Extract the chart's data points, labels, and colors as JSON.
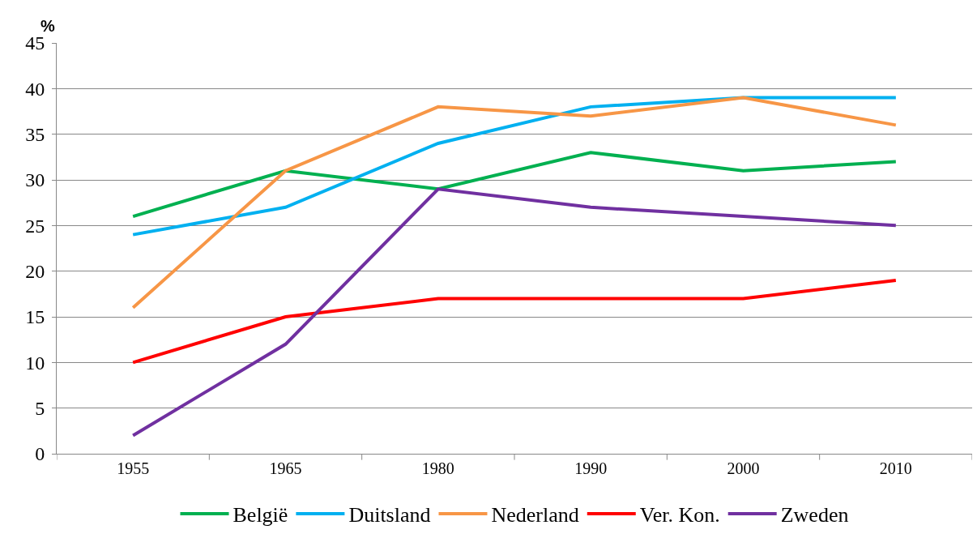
{
  "chart_data": {
    "type": "line",
    "ylabel": "%",
    "categories": [
      "1955",
      "1965",
      "1980",
      "1990",
      "2000",
      "2010"
    ],
    "series": [
      {
        "name": "België",
        "color": "#00b050",
        "values": [
          26,
          31,
          29,
          33,
          31,
          32
        ]
      },
      {
        "name": "Duitsland",
        "color": "#00b0f0",
        "values": [
          24,
          27,
          34,
          38,
          39,
          39
        ]
      },
      {
        "name": "Nederland",
        "color": "#f79646",
        "values": [
          16,
          31,
          38,
          37,
          39,
          36
        ]
      },
      {
        "name": "Ver. Kon.",
        "color": "#ff0000",
        "values": [
          10,
          15,
          17,
          17,
          17,
          19
        ]
      },
      {
        "name": "Zweden",
        "color": "#7030a0",
        "values": [
          2,
          12,
          29,
          27,
          26,
          25
        ]
      }
    ],
    "ylim": [
      0,
      45
    ],
    "yticks": [
      0,
      5,
      10,
      15,
      20,
      25,
      30,
      35,
      40,
      45
    ],
    "grid": "y",
    "legend": "bottom",
    "marker": "none",
    "line_style": "solid"
  }
}
